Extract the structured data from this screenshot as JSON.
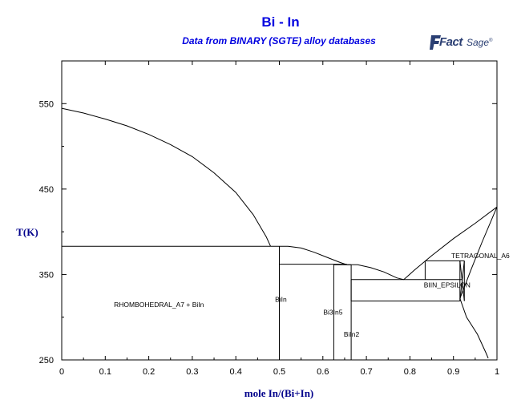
{
  "title": "Bi - In",
  "subtitle": "Data from BINARY (SGTE) alloy databases",
  "logo": {
    "fact": "Fact",
    "sage": "Sage",
    "tm": "®",
    "color": "#2b3f73"
  },
  "colors": {
    "title": "#0000e0",
    "axis_title": "#00008b",
    "lines": "#000000"
  },
  "chart_data": {
    "type": "line",
    "title": "Bi - In",
    "subtitle": "Data from BINARY (SGTE) alloy databases",
    "xlabel": "mole In/(Bi+In)",
    "ylabel": "T(K)",
    "xlim": [
      0,
      1
    ],
    "ylim": [
      250,
      600
    ],
    "grid": false,
    "x_ticks": [
      0,
      0.1,
      0.2,
      0.3,
      0.4,
      0.5,
      0.6,
      0.7,
      0.8,
      0.9,
      1
    ],
    "x_tick_labels": [
      "0",
      "0.1",
      "0.2",
      "0.3",
      "0.4",
      "0.5",
      "0.6",
      "0.7",
      "0.8",
      "0.9",
      "1"
    ],
    "y_ticks": [
      250,
      350,
      450,
      550
    ],
    "y_tick_labels": [
      "250",
      "350",
      "450",
      "550"
    ],
    "series": [
      {
        "points": [
          [
            0,
            544.5
          ],
          [
            0.05,
            539
          ],
          [
            0.1,
            532
          ],
          [
            0.15,
            524
          ],
          [
            0.2,
            514
          ],
          [
            0.25,
            502
          ],
          [
            0.3,
            488
          ],
          [
            0.35,
            469
          ],
          [
            0.4,
            446
          ],
          [
            0.44,
            420
          ],
          [
            0.47,
            394
          ],
          [
            0.48,
            383
          ]
        ]
      },
      {
        "points": [
          [
            0.48,
            383
          ],
          [
            0.52,
            383
          ],
          [
            0.55,
            381
          ],
          [
            0.58,
            376
          ],
          [
            0.61,
            370
          ],
          [
            0.64,
            364
          ],
          [
            0.655,
            361.5
          ]
        ]
      },
      {
        "points": [
          [
            0.655,
            361.5
          ],
          [
            0.68,
            361.5
          ],
          [
            0.71,
            358
          ],
          [
            0.74,
            353
          ],
          [
            0.77,
            346
          ],
          [
            0.786,
            344
          ]
        ]
      },
      {
        "points": [
          [
            0.786,
            344
          ],
          [
            0.81,
            355
          ],
          [
            0.85,
            372
          ],
          [
            0.9,
            392
          ],
          [
            0.95,
            410
          ],
          [
            1,
            429
          ]
        ]
      },
      {
        "points": [
          [
            0.915,
            322
          ],
          [
            0.94,
            355
          ],
          [
            0.965,
            387
          ],
          [
            1,
            429
          ]
        ]
      },
      {
        "points": [
          [
            0.915,
            322
          ],
          [
            0.93,
            300
          ],
          [
            0.955,
            280
          ],
          [
            0.975,
            258
          ],
          [
            0.98,
            252
          ]
        ]
      },
      {
        "points": [
          [
            0,
            383
          ],
          [
            0.48,
            383
          ]
        ]
      },
      {
        "points": [
          [
            0.5,
            383
          ],
          [
            0.5,
            250
          ]
        ]
      },
      {
        "points": [
          [
            0.5,
            362
          ],
          [
            0.655,
            362
          ]
        ]
      },
      {
        "points": [
          [
            0.625,
            361.5
          ],
          [
            0.625,
            250
          ]
        ]
      },
      {
        "points": [
          [
            0.625,
            361.5
          ],
          [
            0.665,
            361.5
          ]
        ]
      },
      {
        "points": [
          [
            0.665,
            361.5
          ],
          [
            0.665,
            250
          ]
        ]
      },
      {
        "points": [
          [
            0.665,
            344
          ],
          [
            0.786,
            344
          ]
        ]
      },
      {
        "points": [
          [
            0.665,
            319
          ],
          [
            0.915,
            319
          ]
        ]
      },
      {
        "points": [
          [
            0.665,
            344
          ],
          [
            0.665,
            319
          ]
        ]
      },
      {
        "points": [
          [
            0.786,
            344
          ],
          [
            0.92,
            344
          ]
        ]
      },
      {
        "points": [
          [
            0.835,
            366
          ],
          [
            0.925,
            366
          ]
        ]
      },
      {
        "points": [
          [
            0.835,
            366
          ],
          [
            0.835,
            344
          ]
        ]
      },
      {
        "points": [
          [
            0.915,
            366
          ],
          [
            0.915,
            319
          ]
        ]
      },
      {
        "points": [
          [
            0.925,
            366
          ],
          [
            0.925,
            319
          ]
        ]
      },
      {
        "points": [
          [
            0.915,
            319
          ],
          [
            0.925,
            366
          ]
        ]
      },
      {
        "points": [
          [
            0.915,
            366
          ],
          [
            0.925,
            319
          ]
        ]
      }
    ],
    "annotations": [
      {
        "text": "RHOMBOHEDRAL_A7 + BiIn",
        "x": 0.12,
        "y": 312
      },
      {
        "text": "BiIn",
        "x": 0.49,
        "y": 318
      },
      {
        "text": "Bi3In5",
        "x": 0.601,
        "y": 303
      },
      {
        "text": "BiIn2",
        "x": 0.648,
        "y": 277
      },
      {
        "text": "BIIN_EPSILON",
        "x": 0.832,
        "y": 335
      },
      {
        "text": "TETRAGONAL_A6",
        "x": 0.895,
        "y": 369
      }
    ]
  }
}
